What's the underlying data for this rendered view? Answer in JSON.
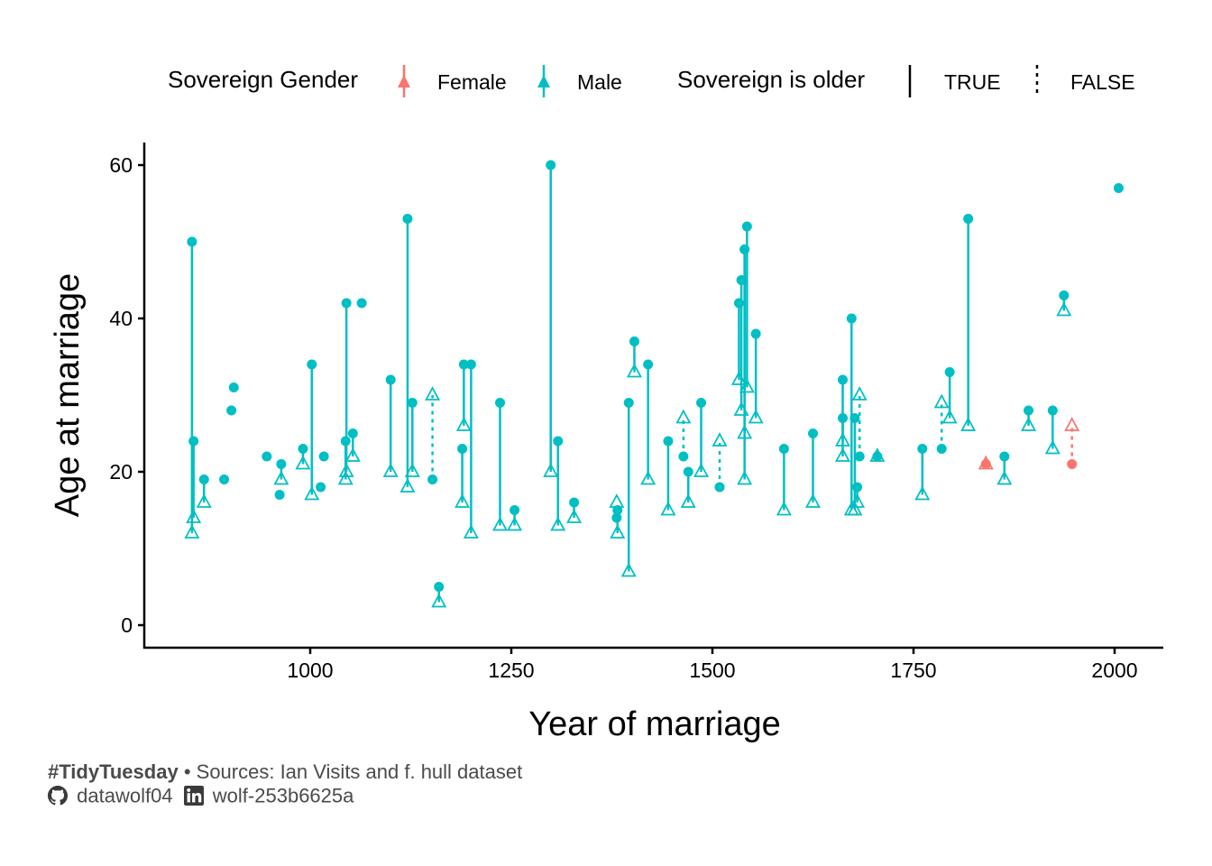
{
  "legend": {
    "gender_title": "Sovereign Gender",
    "gender_items": [
      {
        "label": "Female",
        "color": "#F8766D"
      },
      {
        "label": "Male",
        "color": "#00BFC4"
      }
    ],
    "older_title": "Sovereign is older",
    "older_items": [
      {
        "label": "TRUE",
        "linetype": "solid"
      },
      {
        "label": "FALSE",
        "linetype": "dotted"
      }
    ]
  },
  "caption": {
    "hashtag": "#TidyTuesday",
    "bullet": "•",
    "sources": "Sources: Ian Visits and f. hull dataset",
    "github_icon": "github-icon",
    "github_handle": "datawolf04",
    "linkedin_icon": "linkedin-icon",
    "linkedin_handle": "wolf-253b6625a"
  },
  "chart_data": {
    "type": "scatter",
    "title": "",
    "xlabel": "Year of marriage",
    "ylabel": "Age at marriage",
    "xlim": [
      800,
      2030
    ],
    "ylim": [
      -3,
      63
    ],
    "xticks": [
      1000,
      1250,
      1500,
      1750,
      2000
    ],
    "yticks": [
      0,
      20,
      40,
      60
    ],
    "grid": false,
    "legend_position": "top",
    "colors": {
      "Female": "#F8766D",
      "Male": "#00BFC4"
    },
    "series_note_marks": {
      "sovereign": "filled circle",
      "consort": "open triangle"
    },
    "pairs": [
      {
        "year": 853,
        "sovereign_age": 50,
        "consort_age": 12,
        "gender": "Male",
        "sovereign_older": true
      },
      {
        "year": 855,
        "sovereign_age": 24,
        "consort_age": 14,
        "gender": "Male",
        "sovereign_older": true
      },
      {
        "year": 868,
        "sovereign_age": 19,
        "consort_age": 16,
        "gender": "Male",
        "sovereign_older": true
      },
      {
        "year": 893,
        "sovereign_age": 19,
        "consort_age": null,
        "gender": "Male",
        "sovereign_older": null
      },
      {
        "year": 902,
        "sovereign_age": 28,
        "consort_age": null,
        "gender": "Male",
        "sovereign_older": null
      },
      {
        "year": 905,
        "sovereign_age": 31,
        "consort_age": null,
        "gender": "Male",
        "sovereign_older": null
      },
      {
        "year": 946,
        "sovereign_age": 22,
        "consort_age": null,
        "gender": "Male",
        "sovereign_older": null
      },
      {
        "year": 962,
        "sovereign_age": 17,
        "consort_age": null,
        "gender": "Male",
        "sovereign_older": null
      },
      {
        "year": 964,
        "sovereign_age": 21,
        "consort_age": 19,
        "gender": "Male",
        "sovereign_older": true
      },
      {
        "year": 991,
        "sovereign_age": 23,
        "consort_age": 21,
        "gender": "Male",
        "sovereign_older": true
      },
      {
        "year": 1002,
        "sovereign_age": 34,
        "consort_age": 17,
        "gender": "Male",
        "sovereign_older": true
      },
      {
        "year": 1013,
        "sovereign_age": 18,
        "consort_age": null,
        "gender": "Male",
        "sovereign_older": null
      },
      {
        "year": 1017,
        "sovereign_age": 22,
        "consort_age": null,
        "gender": "Male",
        "sovereign_older": null
      },
      {
        "year": 1045,
        "sovereign_age": 42,
        "consort_age": 20,
        "gender": "Male",
        "sovereign_older": true
      },
      {
        "year": 1044,
        "sovereign_age": 24,
        "consort_age": 19,
        "gender": "Male",
        "sovereign_older": true
      },
      {
        "year": 1053,
        "sovereign_age": 25,
        "consort_age": 22,
        "gender": "Male",
        "sovereign_older": true
      },
      {
        "year": 1064,
        "sovereign_age": 42,
        "consort_age": null,
        "gender": "Male",
        "sovereign_older": null
      },
      {
        "year": 1100,
        "sovereign_age": 32,
        "consort_age": 20,
        "gender": "Male",
        "sovereign_older": true
      },
      {
        "year": 1121,
        "sovereign_age": 53,
        "consort_age": 18,
        "gender": "Male",
        "sovereign_older": true
      },
      {
        "year": 1127,
        "sovereign_age": 29,
        "consort_age": 20,
        "gender": "Male",
        "sovereign_older": true
      },
      {
        "year": 1152,
        "sovereign_age": 19,
        "consort_age": 30,
        "gender": "Male",
        "sovereign_older": false
      },
      {
        "year": 1160,
        "sovereign_age": 5,
        "consort_age": 3,
        "gender": "Male",
        "sovereign_older": true
      },
      {
        "year": 1189,
        "sovereign_age": 23,
        "consort_age": 16,
        "gender": "Male",
        "sovereign_older": true
      },
      {
        "year": 1191,
        "sovereign_age": 34,
        "consort_age": 26,
        "gender": "Male",
        "sovereign_older": true
      },
      {
        "year": 1200,
        "sovereign_age": 34,
        "consort_age": 12,
        "gender": "Male",
        "sovereign_older": true
      },
      {
        "year": 1236,
        "sovereign_age": 29,
        "consort_age": 13,
        "gender": "Male",
        "sovereign_older": true
      },
      {
        "year": 1254,
        "sovereign_age": 15,
        "consort_age": 13,
        "gender": "Male",
        "sovereign_older": true
      },
      {
        "year": 1299,
        "sovereign_age": 60,
        "consort_age": 20,
        "gender": "Male",
        "sovereign_older": true
      },
      {
        "year": 1308,
        "sovereign_age": 24,
        "consort_age": 13,
        "gender": "Male",
        "sovereign_older": true
      },
      {
        "year": 1328,
        "sovereign_age": 16,
        "consort_age": 14,
        "gender": "Male",
        "sovereign_older": true
      },
      {
        "year": 1381,
        "sovereign_age": 14,
        "consort_age": 16,
        "gender": "Male",
        "sovereign_older": false
      },
      {
        "year": 1382,
        "sovereign_age": 15,
        "consort_age": 12,
        "gender": "Male",
        "sovereign_older": true
      },
      {
        "year": 1396,
        "sovereign_age": 29,
        "consort_age": 7,
        "gender": "Male",
        "sovereign_older": true
      },
      {
        "year": 1403,
        "sovereign_age": 37,
        "consort_age": 33,
        "gender": "Male",
        "sovereign_older": true
      },
      {
        "year": 1420,
        "sovereign_age": 34,
        "consort_age": 19,
        "gender": "Male",
        "sovereign_older": true
      },
      {
        "year": 1445,
        "sovereign_age": 24,
        "consort_age": 15,
        "gender": "Male",
        "sovereign_older": true
      },
      {
        "year": 1464,
        "sovereign_age": 22,
        "consort_age": 27,
        "gender": "Male",
        "sovereign_older": false
      },
      {
        "year": 1470,
        "sovereign_age": 20,
        "consort_age": 16,
        "gender": "Male",
        "sovereign_older": true
      },
      {
        "year": 1486,
        "sovereign_age": 29,
        "consort_age": 20,
        "gender": "Male",
        "sovereign_older": true
      },
      {
        "year": 1509,
        "sovereign_age": 18,
        "consort_age": 24,
        "gender": "Male",
        "sovereign_older": false
      },
      {
        "year": 1533,
        "sovereign_age": 42,
        "consort_age": 32,
        "gender": "Male",
        "sovereign_older": true
      },
      {
        "year": 1536,
        "sovereign_age": 45,
        "consort_age": 28,
        "gender": "Male",
        "sovereign_older": true
      },
      {
        "year": 1540,
        "sovereign_age": 49,
        "consort_age": 25,
        "gender": "Male",
        "sovereign_older": true
      },
      {
        "year": 1540,
        "sovereign_age": 49,
        "consort_age": 19,
        "gender": "Male",
        "sovereign_older": true
      },
      {
        "year": 1543,
        "sovereign_age": 52,
        "consort_age": 31,
        "gender": "Male",
        "sovereign_older": true
      },
      {
        "year": 1554,
        "sovereign_age": 38,
        "consort_age": 27,
        "gender": "Male",
        "sovereign_older": true
      },
      {
        "year": 1589,
        "sovereign_age": 23,
        "consort_age": 15,
        "gender": "Male",
        "sovereign_older": true
      },
      {
        "year": 1625,
        "sovereign_age": 25,
        "consort_age": 16,
        "gender": "Male",
        "sovereign_older": true
      },
      {
        "year": 1662,
        "sovereign_age": 32,
        "consort_age": 24,
        "gender": "Male",
        "sovereign_older": true
      },
      {
        "year": 1662,
        "sovereign_age": 27,
        "consort_age": 22,
        "gender": "Male",
        "sovereign_older": true
      },
      {
        "year": 1673,
        "sovereign_age": 40,
        "consort_age": 15,
        "gender": "Male",
        "sovereign_older": true
      },
      {
        "year": 1677,
        "sovereign_age": 27,
        "consort_age": 15,
        "gender": "Male",
        "sovereign_older": true
      },
      {
        "year": 1680,
        "sovereign_age": 18,
        "consort_age": 16,
        "gender": "Male",
        "sovereign_older": true
      },
      {
        "year": 1683,
        "sovereign_age": 22,
        "consort_age": 30,
        "gender": "Male",
        "sovereign_older": false
      },
      {
        "year": 1705,
        "sovereign_age": 22,
        "consort_age": 22,
        "gender": "Male",
        "sovereign_older": true
      },
      {
        "year": 1761,
        "sovereign_age": 23,
        "consort_age": 17,
        "gender": "Male",
        "sovereign_older": true
      },
      {
        "year": 1785,
        "sovereign_age": 23,
        "consort_age": 29,
        "gender": "Male",
        "sovereign_older": false
      },
      {
        "year": 1795,
        "sovereign_age": 33,
        "consort_age": 27,
        "gender": "Male",
        "sovereign_older": true
      },
      {
        "year": 1818,
        "sovereign_age": 53,
        "consort_age": 26,
        "gender": "Male",
        "sovereign_older": true
      },
      {
        "year": 1840,
        "sovereign_age": 21,
        "consort_age": 21,
        "gender": "Female",
        "sovereign_older": true
      },
      {
        "year": 1863,
        "sovereign_age": 22,
        "consort_age": 19,
        "gender": "Male",
        "sovereign_older": true
      },
      {
        "year": 1893,
        "sovereign_age": 28,
        "consort_age": 26,
        "gender": "Male",
        "sovereign_older": true
      },
      {
        "year": 1923,
        "sovereign_age": 28,
        "consort_age": 23,
        "gender": "Male",
        "sovereign_older": true
      },
      {
        "year": 1937,
        "sovereign_age": 43,
        "consort_age": 41,
        "gender": "Male",
        "sovereign_older": true
      },
      {
        "year": 1947,
        "sovereign_age": 21,
        "consort_age": 26,
        "gender": "Female",
        "sovereign_older": false
      },
      {
        "year": 2005,
        "sovereign_age": 57,
        "consort_age": null,
        "gender": "Male",
        "sovereign_older": null
      }
    ]
  }
}
